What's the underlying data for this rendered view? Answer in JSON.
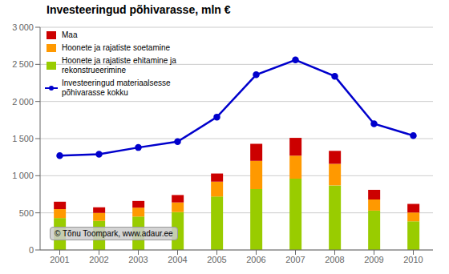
{
  "chart_data": {
    "type": "bar",
    "title": "Investeeringud põhivarasse, mln €",
    "categories": [
      "2001",
      "2002",
      "2003",
      "2004",
      "2005",
      "2006",
      "2007",
      "2008",
      "2009",
      "2010"
    ],
    "series": [
      {
        "name": "Maa",
        "type": "bar",
        "color": "#cc0000",
        "values": [
          100,
          75,
          90,
          100,
          110,
          230,
          240,
          175,
          130,
          115
        ]
      },
      {
        "name": "Hoonete ja rajatiste soetamine",
        "type": "bar",
        "color": "#ff9900",
        "values": [
          120,
          110,
          120,
          130,
          200,
          380,
          310,
          290,
          150,
          120
        ]
      },
      {
        "name": "Hoonete ja rajatiste ehitamine ja\nrekonstrueerimine",
        "type": "bar",
        "color": "#99cc00",
        "values": [
          430,
          390,
          450,
          510,
          720,
          820,
          960,
          870,
          530,
          385
        ]
      },
      {
        "name": "Investeeringud materiaalsesse\npõhivarasse kokku",
        "type": "line",
        "color": "#0000cc",
        "marker": "circle",
        "values": [
          1270,
          1290,
          1380,
          1460,
          1790,
          2360,
          2560,
          2340,
          1700,
          1540
        ]
      }
    ],
    "ylim": [
      0,
      3000
    ],
    "yticks": [
      0,
      500,
      {
        "value": 1000,
        "label": "1 000"
      },
      {
        "value": 1500,
        "label": "1 500"
      },
      {
        "value": 2000,
        "label": "2 000"
      },
      {
        "value": 2500,
        "label": "2 500"
      },
      {
        "value": 3000,
        "label": "3 000"
      }
    ],
    "stacked": true,
    "grid": true,
    "legend": "upper left",
    "annotations": [
      "© Tõnu Toompark, www.adaur.ee"
    ]
  }
}
